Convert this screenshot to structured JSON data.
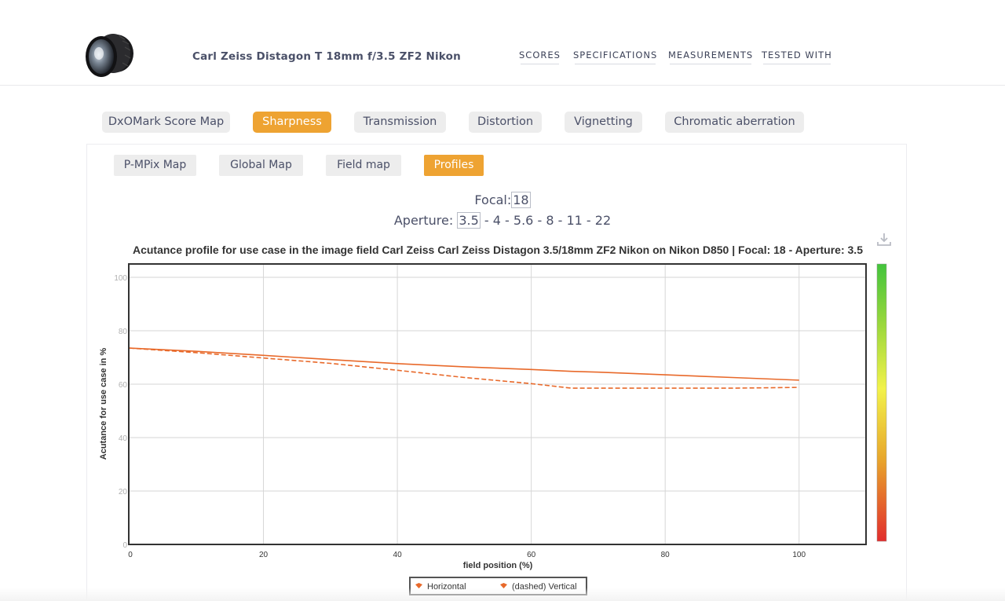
{
  "header": {
    "product_title": "Carl Zeiss Distagon T 18mm f/3.5 ZF2 Nikon",
    "nav": [
      "SCORES",
      "SPECIFICATIONS",
      "MEASUREMENTS",
      "TESTED WITH"
    ]
  },
  "tabs": [
    {
      "label": "DxOMark Score Map",
      "active": false
    },
    {
      "label": "Sharpness",
      "active": true
    },
    {
      "label": "Transmission",
      "active": false
    },
    {
      "label": "Distortion",
      "active": false
    },
    {
      "label": "Vignetting",
      "active": false
    },
    {
      "label": "Chromatic aberration",
      "active": false
    }
  ],
  "subtabs": [
    {
      "label": "P-MPix Map",
      "active": false
    },
    {
      "label": "Global Map",
      "active": false
    },
    {
      "label": "Field map",
      "active": false
    },
    {
      "label": "Profiles",
      "active": true
    }
  ],
  "focal": {
    "label": "Focal:",
    "value": "18"
  },
  "aperture": {
    "label": "Aperture:",
    "values": [
      "3.5",
      "4",
      "5.6",
      "8",
      "11",
      "22"
    ],
    "selected": "3.5"
  },
  "chart_data": {
    "type": "line",
    "title": "Acutance profile for use case in the image field Carl Zeiss Carl Zeiss Distagon 3.5/18mm ZF2 Nikon on Nikon D850 | Focal: 18 - Aperture: 3.5",
    "xlabel": "field position (%)",
    "ylabel": "Acutance for use case in %",
    "xlim": [
      0,
      110
    ],
    "ylim": [
      0,
      105
    ],
    "xticks": [
      0,
      20,
      40,
      60,
      80,
      100
    ],
    "yticks": [
      0,
      20,
      40,
      60,
      80,
      100
    ],
    "grid": true,
    "legend_placement": "bottom-center",
    "series": [
      {
        "name": "Horizontal",
        "style": "solid",
        "color": "#e8692a",
        "x": [
          0,
          10,
          20,
          30,
          40,
          50,
          60,
          66,
          70,
          80,
          90,
          100
        ],
        "y": [
          73.5,
          72.3,
          70.8,
          69.2,
          67.7,
          66.5,
          65.5,
          64.8,
          64.5,
          63.5,
          62.5,
          61.5
        ]
      },
      {
        "name": "(dashed) Vertical",
        "style": "dashed",
        "color": "#e8692a",
        "x": [
          0,
          10,
          20,
          30,
          40,
          50,
          60,
          66,
          70,
          80,
          90,
          100
        ],
        "y": [
          73.5,
          71.8,
          69.8,
          67.8,
          65.2,
          62.5,
          60.2,
          58.5,
          58.5,
          58.5,
          58.5,
          58.8
        ]
      }
    ],
    "color_scale": [
      "#e22d2d",
      "#e8a82c",
      "#f2f24a",
      "#9bd83c",
      "#43c43c"
    ]
  }
}
